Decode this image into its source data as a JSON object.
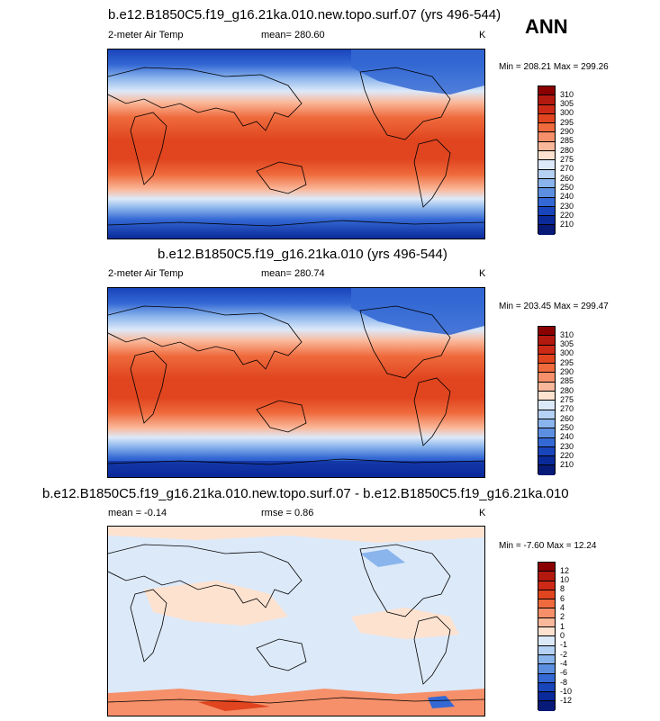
{
  "season": "ANN",
  "panels": [
    {
      "title": "b.e12.B1850C5.f19_g16.21ka.010.new.topo.surf.07 (yrs 496-544)",
      "left_label": "2-meter Air Temp",
      "mean_label": "mean= 280.60",
      "units": "K",
      "minmax": "Min = 208.21 Max = 299.26",
      "colorbar_labels": [
        "310",
        "305",
        "300",
        "295",
        "290",
        "285",
        "280",
        "275",
        "270",
        "260",
        "250",
        "240",
        "230",
        "220",
        "210"
      ]
    },
    {
      "title": "b.e12.B1850C5.f19_g16.21ka.010 (yrs 496-544)",
      "left_label": "2-meter Air Temp",
      "mean_label": "mean= 280.74",
      "units": "K",
      "minmax": "Min = 203.45 Max = 299.47",
      "colorbar_labels": [
        "310",
        "305",
        "300",
        "295",
        "290",
        "285",
        "280",
        "275",
        "270",
        "260",
        "250",
        "240",
        "230",
        "220",
        "210"
      ]
    },
    {
      "title": "b.e12.B1850C5.f19_g16.21ka.010.new.topo.surf.07 - b.e12.B1850C5.f19_g16.21ka.010",
      "left_label": "mean =  -0.14",
      "mean_label": "rmse =   0.86",
      "units": "K",
      "minmax": "Min =  -7.60 Max =  12.24",
      "colorbar_labels": [
        "12",
        "10",
        "8",
        "6",
        "4",
        "2",
        "1",
        "0",
        "-1",
        "-2",
        "-4",
        "-6",
        "-8",
        "-10",
        "-12"
      ]
    }
  ],
  "colors": {
    "temp_scale": [
      "#8b0000",
      "#b3190f",
      "#cc2a16",
      "#e0451f",
      "#ef6a3c",
      "#f6906a",
      "#fab89a",
      "#fde2d0",
      "#dce9f9",
      "#b5d1f4",
      "#8ab4ec",
      "#5c8fe0",
      "#3468d4",
      "#1945bb",
      "#0a2a9a",
      "#071a78"
    ],
    "diff_scale": [
      "#8b0000",
      "#b3190f",
      "#cc2a16",
      "#e0451f",
      "#ef6a3c",
      "#f6906a",
      "#fab89a",
      "#fde2d0",
      "#dce9f9",
      "#b5d1f4",
      "#8ab4ec",
      "#5c8fe0",
      "#3468d4",
      "#1945bb",
      "#0a2a9a",
      "#071a78"
    ]
  }
}
